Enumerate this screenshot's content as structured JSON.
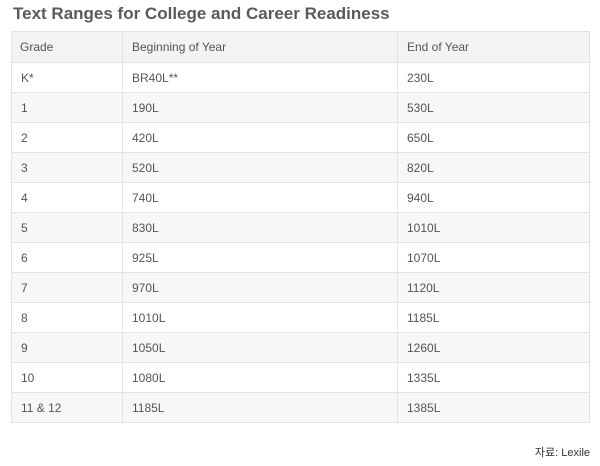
{
  "title": "Text Ranges for College and Career Readiness",
  "table": {
    "headers": [
      "Grade",
      "Beginning of Year",
      "End of Year"
    ],
    "rows": [
      {
        "grade": "K*",
        "boy": "BR40L**",
        "eoy": "230L"
      },
      {
        "grade": "1",
        "boy": "190L",
        "eoy": "530L"
      },
      {
        "grade": "2",
        "boy": "420L",
        "eoy": "650L"
      },
      {
        "grade": "3",
        "boy": "520L",
        "eoy": "820L"
      },
      {
        "grade": "4",
        "boy": "740L",
        "eoy": "940L"
      },
      {
        "grade": "5",
        "boy": "830L",
        "eoy": "1010L"
      },
      {
        "grade": "6",
        "boy": "925L",
        "eoy": "1070L"
      },
      {
        "grade": "7",
        "boy": "970L",
        "eoy": "1120L"
      },
      {
        "grade": "8",
        "boy": "1010L",
        "eoy": "1185L"
      },
      {
        "grade": "9",
        "boy": "1050L",
        "eoy": "1260L"
      },
      {
        "grade": "10",
        "boy": "1080L",
        "eoy": "1335L"
      },
      {
        "grade": "11 & 12",
        "boy": "1185L",
        "eoy": "1385L"
      }
    ]
  },
  "source": "자료: Lexile",
  "colors": {
    "header_bg": "#f3f3f3",
    "alt_row_bg": "#f7f7f7",
    "border": "#e3e3e3",
    "text": "#555555"
  }
}
